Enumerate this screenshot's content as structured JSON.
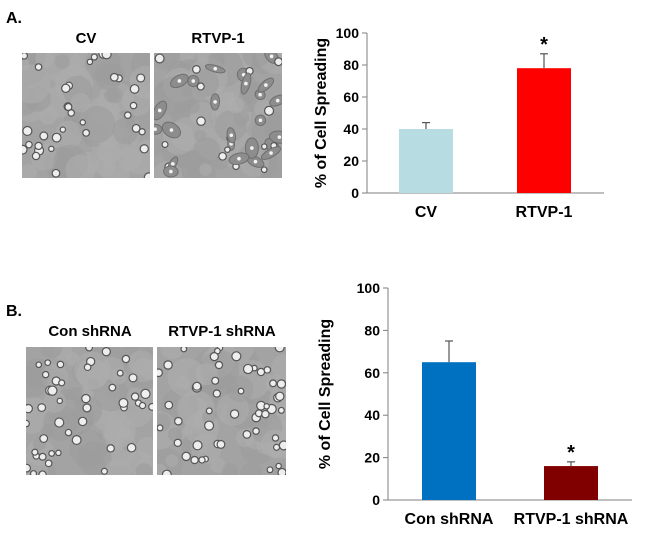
{
  "panels": [
    {
      "letter": "A.",
      "images": [
        {
          "label": "CV",
          "name": "cv-micrograph"
        },
        {
          "label": "RTVP-1",
          "name": "rtvp1-micrograph"
        }
      ],
      "chart_data": {
        "type": "bar",
        "categories": [
          "CV",
          "RTVP-1"
        ],
        "values": [
          40,
          78
        ],
        "errors": [
          4,
          9
        ],
        "colors": [
          "#b7dde3",
          "#ff0000"
        ],
        "significance": [
          "",
          "*"
        ],
        "ylabel": "% of Cell Spreading",
        "ylim": [
          0,
          100
        ],
        "yticks": [
          0,
          20,
          40,
          60,
          80,
          100
        ]
      }
    },
    {
      "letter": "B.",
      "images": [
        {
          "label": "Con shRNA",
          "name": "con-shrna-micrograph"
        },
        {
          "label": "RTVP-1 shRNA",
          "name": "rtvp1-shrna-micrograph"
        }
      ],
      "chart_data": {
        "type": "bar",
        "categories": [
          "Con shRNA",
          "RTVP-1 shRNA"
        ],
        "values": [
          65,
          16
        ],
        "errors": [
          10,
          2
        ],
        "colors": [
          "#0070c0",
          "#800000"
        ],
        "significance": [
          "",
          "*"
        ],
        "ylabel": "% of Cell Spreading",
        "ylim": [
          0,
          100
        ],
        "yticks": [
          0,
          20,
          40,
          60,
          80,
          100
        ]
      }
    }
  ]
}
